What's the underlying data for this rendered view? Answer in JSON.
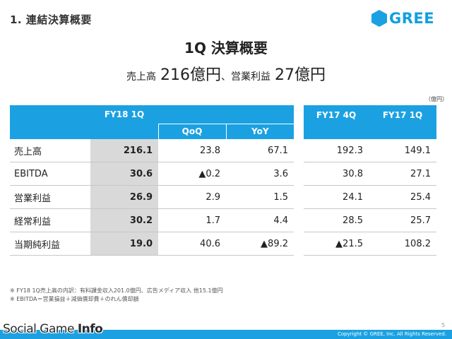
{
  "header": {
    "section_title": "1. 連結決算概要",
    "logo_text": "GREE",
    "brand_color": "#1ba1e2"
  },
  "title": "1Q 決算概要",
  "headline": {
    "sales_label": "売上高",
    "sales_value": "216億円",
    "separator": "、",
    "op_label": "営業利益",
    "op_value": "27億円"
  },
  "unit": "（億円）",
  "table": {
    "header": {
      "current": "FY18 1Q",
      "qoq": "QoQ",
      "yoy": "YoY",
      "prev_q": "FY17 4Q",
      "prev_y": "FY17 1Q"
    },
    "rows": [
      {
        "label": "売上高",
        "current": "216.1",
        "qoq": "23.8",
        "yoy": "67.1",
        "prev_q": "192.3",
        "prev_y": "149.1"
      },
      {
        "label": "EBITDA",
        "current": "30.6",
        "qoq": "▲0.2",
        "yoy": "3.6",
        "prev_q": "30.8",
        "prev_y": "27.1"
      },
      {
        "label": "営業利益",
        "current": "26.9",
        "qoq": "2.9",
        "yoy": "1.5",
        "prev_q": "24.1",
        "prev_y": "25.4"
      },
      {
        "label": "経常利益",
        "current": "30.2",
        "qoq": "1.7",
        "yoy": "4.4",
        "prev_q": "28.5",
        "prev_y": "25.7"
      },
      {
        "label": "当期純利益",
        "current": "19.0",
        "qoq": "40.6",
        "yoy": "▲89.2",
        "prev_q": "▲21.5",
        "prev_y": "108.2"
      }
    ]
  },
  "notes": [
    "※ FY18 1Q売上高の内訳：有料課金収入201.0億円、広告メディア収入 他15.1億円",
    "※ EBITDA＝営業損益＋減価償却費＋のれん償却額"
  ],
  "page_number": "5",
  "copyright": "Copyright © GREE, Inc. All Rights Reserved.",
  "watermark": {
    "part1": "Social Game ",
    "part2": "Info"
  }
}
